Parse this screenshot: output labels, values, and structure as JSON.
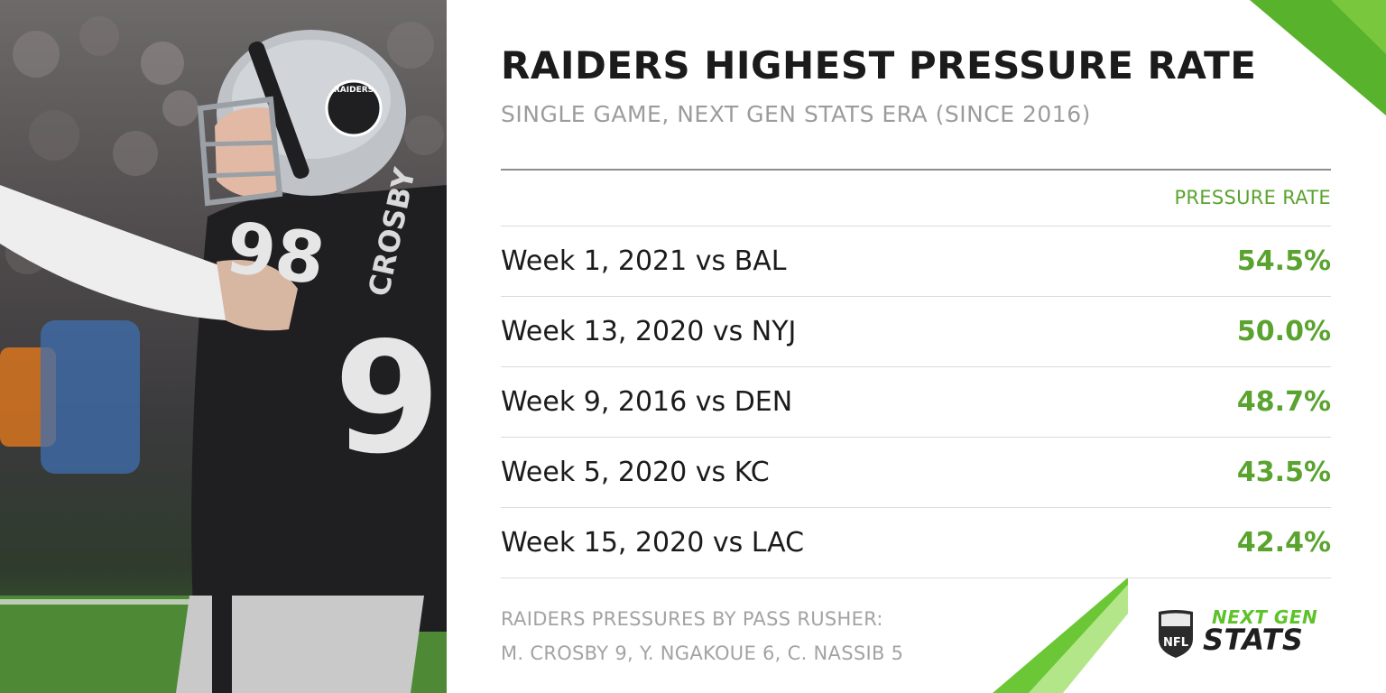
{
  "header": {
    "title": "RAIDERS HIGHEST PRESSURE RATE",
    "subtitle": "SINGLE GAME, NEXT GEN STATS ERA (SINCE 2016)"
  },
  "table": {
    "column_header": "PRESSURE RATE",
    "rows": [
      {
        "game": "Week 1, 2021 vs BAL",
        "rate": "54.5%"
      },
      {
        "game": "Week 13, 2020 vs NYJ",
        "rate": "50.0%"
      },
      {
        "game": "Week 9, 2016 vs DEN",
        "rate": "48.7%"
      },
      {
        "game": "Week 5, 2020 vs KC",
        "rate": "43.5%"
      },
      {
        "game": "Week 15, 2020 vs LAC",
        "rate": "42.4%"
      }
    ]
  },
  "footnote": {
    "line1": "RAIDERS PRESSURES BY PASS RUSHER:",
    "line2": "M. CROSBY 9, Y. NGAKOUE 6, C. NASSIB 5"
  },
  "photo": {
    "jersey_number": "98",
    "jersey_name": "CROSBY",
    "helmet_text": "RAIDERS"
  },
  "brand": {
    "line1": "NEXT GEN",
    "line2": "STATS",
    "shield_text": "NFL"
  },
  "colors": {
    "accent_green": "#5aa32f",
    "title_dark": "#1b1b1b",
    "subtitle_gray": "#9c9c9c"
  }
}
